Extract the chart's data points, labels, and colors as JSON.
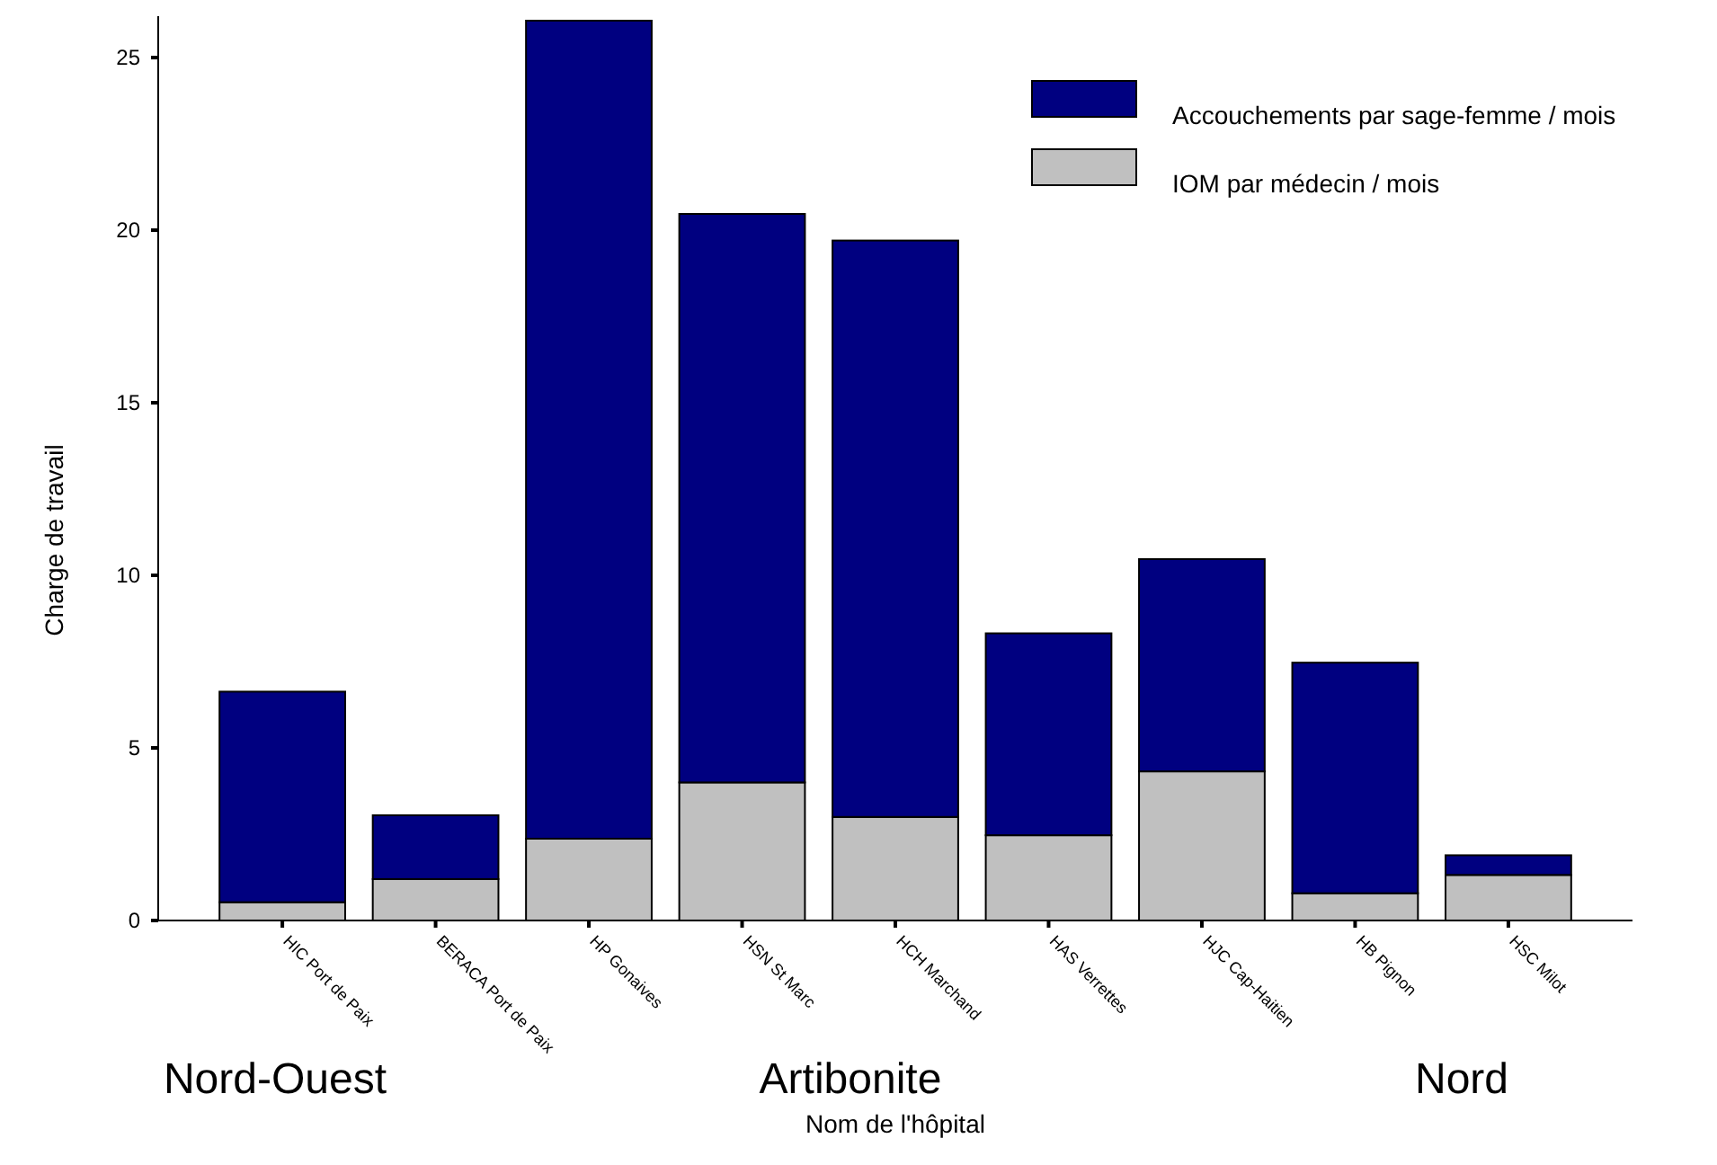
{
  "chart_data": {
    "type": "bar",
    "xlabel": "Nom de l'hôpital",
    "ylabel": "Charge de travail",
    "categories": [
      "HIC Port de Paix",
      "BERACA Port de Paix",
      "HP Gonaives",
      "HSN St Marc",
      "HCH Marchand",
      "HAS Verrettes",
      "HJC Cap-Haitien",
      "HB Pignon",
      "HSC Milot"
    ],
    "stacked": true,
    "series": [
      {
        "name": "IOM par médecin / mois",
        "color": "#c0c0c0",
        "values": [
          0.53,
          1.2,
          2.37,
          4.0,
          3.0,
          2.47,
          4.32,
          0.79,
          1.32
        ]
      },
      {
        "name": "Accouchements par sage-femme / mois",
        "color": "#000080",
        "values": [
          6.1,
          1.85,
          23.7,
          16.47,
          16.7,
          5.85,
          6.15,
          6.68,
          0.57
        ]
      }
    ],
    "ylim": [
      0,
      26.2
    ],
    "yticks": [
      0,
      5,
      10,
      15,
      20,
      25
    ],
    "grid": false,
    "legend": "top right",
    "annotations": [
      "Nord-Ouest",
      "Artibonite",
      "Nord"
    ]
  }
}
